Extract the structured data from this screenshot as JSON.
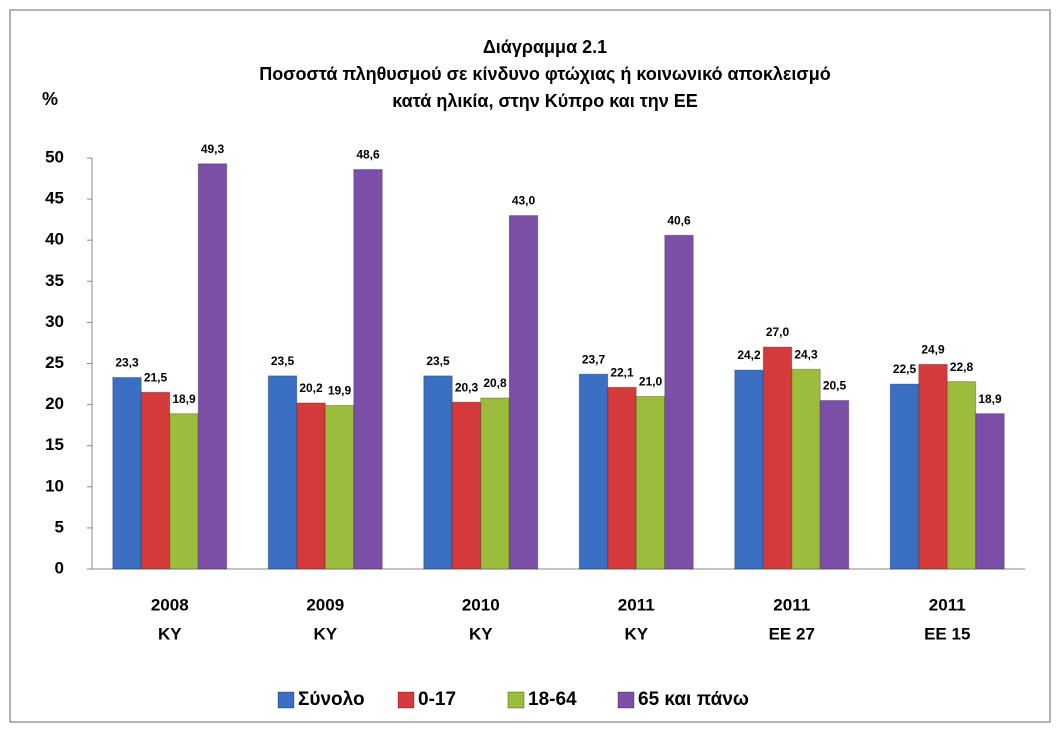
{
  "chart_data": {
    "type": "bar",
    "title": [
      "Διάγραμμα 2.1",
      "Ποσοστά πληθυσμού  σε κίνδυνο φτώχιας ή κοινωνικό  αποκλεισμό",
      "κατά ηλικία,  στην Κύπρο και την ΕΕ"
    ],
    "y_label": "%",
    "categories": [
      [
        "2008",
        "ΚΥ"
      ],
      [
        "2009",
        "ΚΥ"
      ],
      [
        "2010",
        "ΚΥ"
      ],
      [
        "2011",
        "ΚΥ"
      ],
      [
        "2011",
        "ΕΕ 27"
      ],
      [
        "2011",
        "ΕΕ 15"
      ]
    ],
    "series": [
      {
        "name": "Σύνολο",
        "color": "#3a6fc4",
        "values": [
          23.3,
          23.5,
          23.5,
          23.7,
          24.2,
          22.5
        ],
        "value_labels": [
          "23,3",
          "23,5",
          "23,5",
          "23,7",
          "24,2",
          "22,5"
        ]
      },
      {
        "name": "0-17",
        "color": "#d63b3b",
        "values": [
          21.5,
          20.2,
          20.3,
          22.1,
          27.0,
          24.9
        ],
        "value_labels": [
          "21,5",
          "20,2",
          "20,3",
          "22,1",
          "27,0",
          "24,9"
        ]
      },
      {
        "name": "18-64",
        "color": "#9cbc3c",
        "values": [
          18.9,
          19.9,
          20.8,
          21.0,
          24.3,
          22.8
        ],
        "value_labels": [
          "18,9",
          "19,9",
          "20,8",
          "21,0",
          "24,3",
          "22,8"
        ]
      },
      {
        "name": "65 και πάνω",
        "color": "#7b4fa8",
        "values": [
          49.3,
          48.6,
          43.0,
          40.6,
          20.5,
          18.9
        ],
        "value_labels": [
          "49,3",
          "48,6",
          "43,0",
          "40,6",
          "20,5",
          "18,9"
        ]
      }
    ],
    "ylim": [
      0,
      50
    ],
    "yticks": [
      0,
      5,
      10,
      15,
      20,
      25,
      30,
      35,
      40,
      45,
      50
    ],
    "grid": false,
    "legend": "bottom"
  }
}
